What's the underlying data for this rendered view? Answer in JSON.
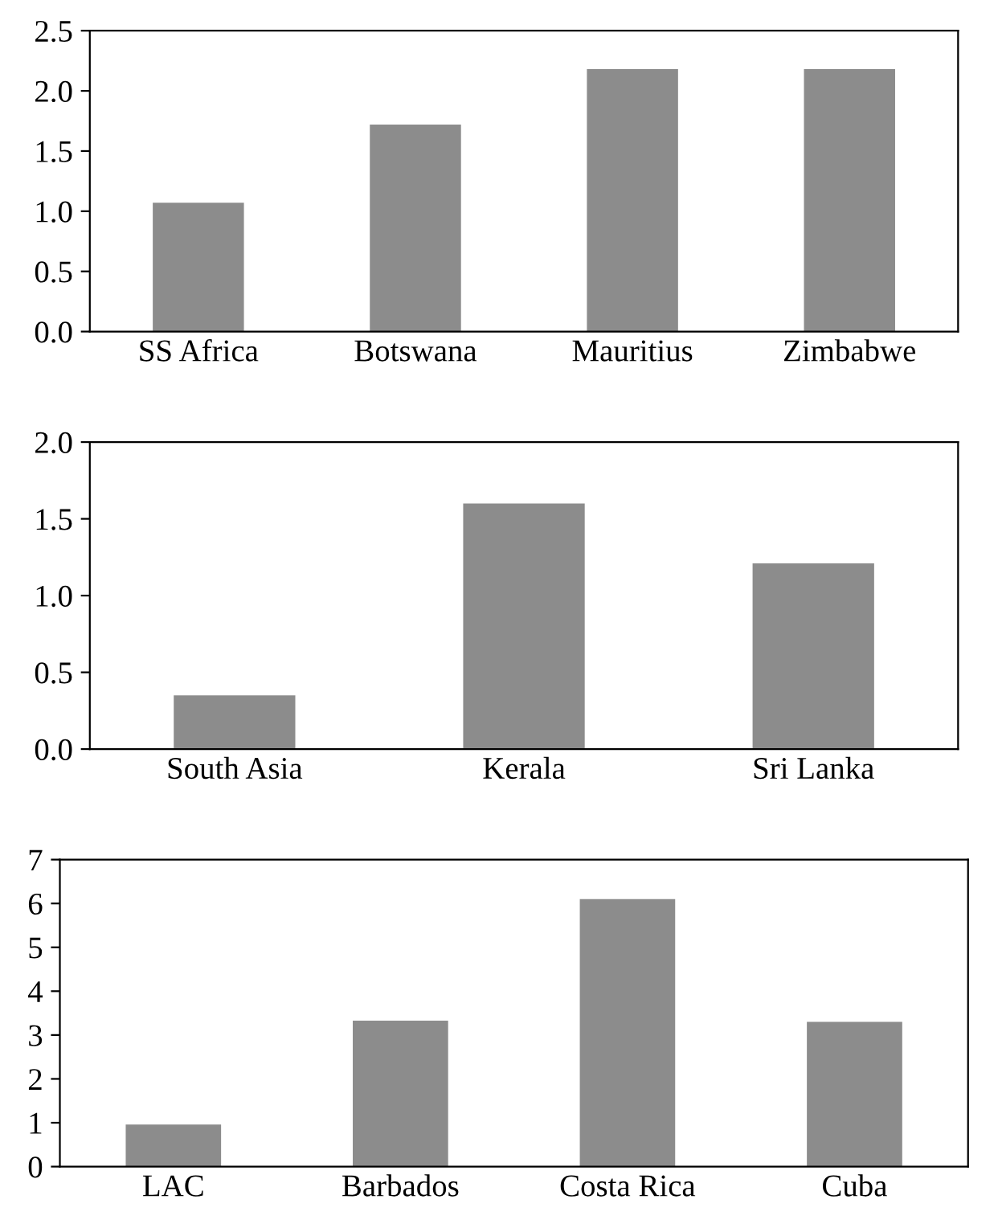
{
  "chart_data": [
    {
      "type": "bar",
      "categories": [
        "SS Africa",
        "Botswana",
        "Mauritius",
        "Zimbabwe"
      ],
      "values": [
        1.07,
        1.72,
        2.18,
        2.18
      ],
      "color": "#8c8c8c",
      "ylim": [
        0,
        2.5
      ],
      "yticks": [
        {
          "value": 0,
          "label": "0.0"
        },
        0.5,
        {
          "value": 1,
          "label": "1.0"
        },
        1.5,
        {
          "value": 2,
          "label": "2.0"
        },
        2.5
      ],
      "grid": false
    },
    {
      "type": "bar",
      "categories": [
        "South Asia",
        "Kerala",
        "Sri Lanka"
      ],
      "values": [
        0.35,
        1.6,
        1.21
      ],
      "color": "#8c8c8c",
      "ylim": [
        0,
        2
      ],
      "yticks": [
        {
          "value": 0,
          "label": "0.0"
        },
        0.5,
        {
          "value": 1,
          "label": "1.0"
        },
        1.5,
        {
          "value": 2,
          "label": "2.0"
        }
      ],
      "grid": false
    },
    {
      "type": "bar",
      "categories": [
        "LAC",
        "Barbados",
        "Costa Rica",
        "Cuba"
      ],
      "values": [
        0.96,
        3.33,
        6.1,
        3.3
      ],
      "color": "#8c8c8c",
      "ylim": [
        0,
        7
      ],
      "yticks": [
        0,
        1,
        2,
        3,
        4,
        5,
        6,
        7
      ],
      "grid": false
    }
  ]
}
